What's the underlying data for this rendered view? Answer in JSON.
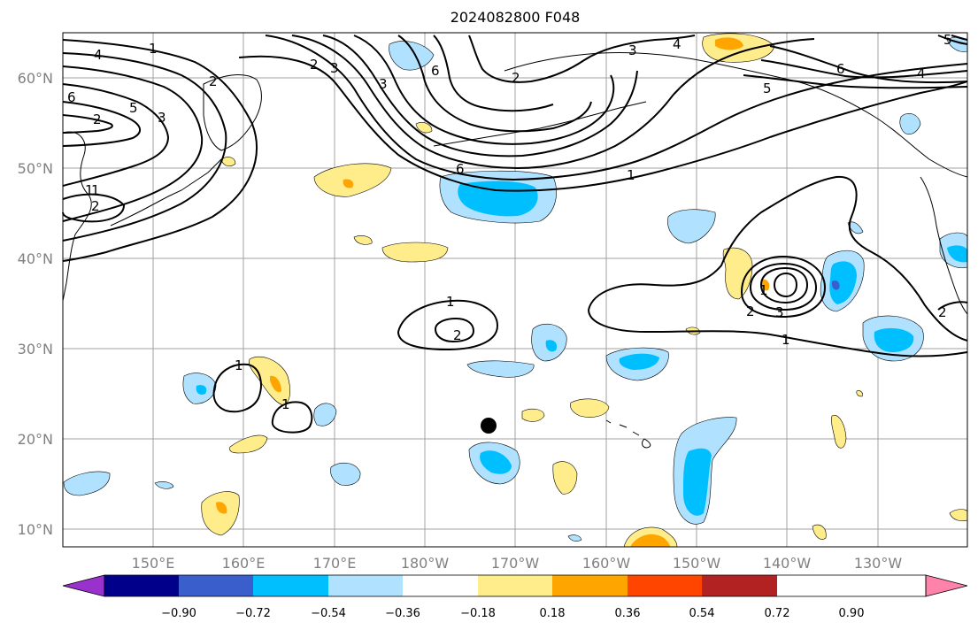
{
  "title": "2024082800 F048",
  "lat_labels": [
    "60°N",
    "50°N",
    "40°N",
    "30°N",
    "20°N",
    "10°N"
  ],
  "lon_labels": [
    "150°E",
    "160°E",
    "170°E",
    "180°W",
    "170°W",
    "160°W",
    "150°W",
    "140°W",
    "130°W"
  ],
  "colorbar": {
    "tick_labels": [
      "−0.90",
      "−0.72",
      "−0.54",
      "−0.36",
      "−0.18",
      "0.18",
      "0.36",
      "0.54",
      "0.72",
      "0.90"
    ],
    "colors": [
      "#9932cc",
      "#00008b",
      "#3a5fcd",
      "#00bfff",
      "#b0e2ff",
      "#ffffff",
      "#ffec8b",
      "#ffa500",
      "#ff4500",
      "#b22222",
      "#ff82ab"
    ]
  },
  "contour_labels": [
    "1",
    "2",
    "3",
    "4",
    "5",
    "6",
    "1",
    "2",
    "3",
    "2",
    "3",
    "6",
    "3",
    "4",
    "2",
    "6",
    "1",
    "6",
    "5",
    "4",
    "5",
    "1",
    "2",
    "1",
    "2",
    "1",
    "2",
    "3",
    "1",
    "1",
    "1",
    "2"
  ],
  "colors": {
    "grid": "#a0a0a0",
    "light_blue": "#b0e2ff",
    "blue": "#00bfff",
    "mid_blue": "#3a5fcd",
    "yellow": "#ffec8b",
    "orange": "#ffa500",
    "contour": "#000000"
  }
}
